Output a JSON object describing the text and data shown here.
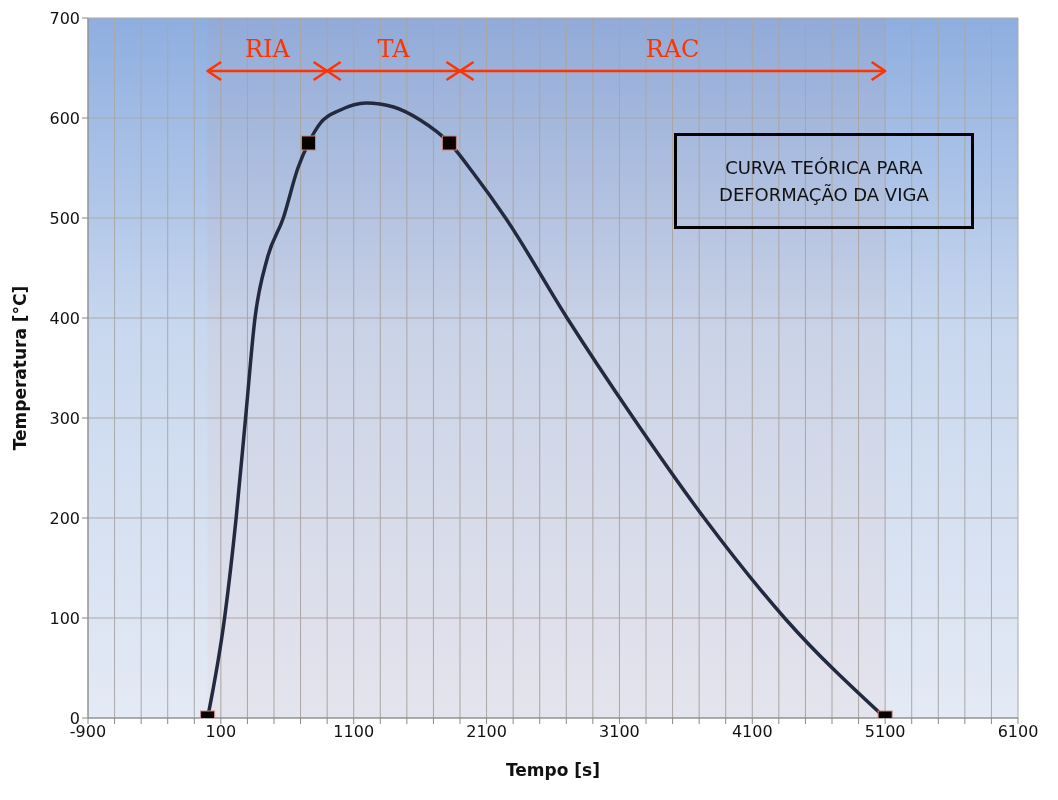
{
  "chart_data": {
    "type": "line",
    "xlabel": "Tempo [s]",
    "ylabel": "Temperatura [°C]",
    "xlim": [
      -900,
      6100
    ],
    "ylim": [
      0,
      700
    ],
    "xticks": [
      -900,
      {
        "value": -700,
        "label": null
      },
      {
        "value": -500,
        "label": null
      },
      {
        "value": -300,
        "label": null
      },
      {
        "value": -100,
        "label": null
      },
      100,
      {
        "value": 300,
        "label": null
      },
      {
        "value": 500,
        "label": null
      },
      {
        "value": 700,
        "label": null
      },
      {
        "value": 900,
        "label": null
      },
      1100,
      {
        "value": 1300,
        "label": null
      },
      {
        "value": 1500,
        "label": null
      },
      {
        "value": 1700,
        "label": null
      },
      {
        "value": 1900,
        "label": null
      },
      2100,
      {
        "value": 2300,
        "label": null
      },
      {
        "value": 2500,
        "label": null
      },
      {
        "value": 2700,
        "label": null
      },
      {
        "value": 2900,
        "label": null
      },
      3100,
      {
        "value": 3300,
        "label": null
      },
      {
        "value": 3500,
        "label": null
      },
      {
        "value": 3700,
        "label": null
      },
      {
        "value": 3900,
        "label": null
      },
      4100,
      {
        "value": 4300,
        "label": null
      },
      {
        "value": 4500,
        "label": null
      },
      {
        "value": 4700,
        "label": null
      },
      {
        "value": 4900,
        "label": null
      },
      5100,
      {
        "value": 5300,
        "label": null
      },
      {
        "value": 5500,
        "label": null
      },
      {
        "value": 5700,
        "label": null
      },
      {
        "value": 5900,
        "label": null
      },
      6100
    ],
    "yticks": [
      0,
      100,
      200,
      300,
      400,
      500,
      600,
      700
    ],
    "grid": true,
    "line_style": "solid",
    "series": [
      {
        "type": "line",
        "color": "#1c2a42",
        "marker": "none",
        "x": [
          0,
          128,
          215,
          286,
          357,
          450,
          570,
          680,
          760,
          850,
          1000,
          1194,
          1400,
          1600,
          1821,
          2000,
          2243,
          2706,
          3205,
          3738,
          4343,
          5100
        ],
        "values": [
          0,
          100,
          200,
          300,
          400,
          460,
          500,
          550,
          575,
          595,
          608,
          615,
          611,
          598,
          575,
          545,
          500,
          400,
          300,
          200,
          100,
          0
        ]
      },
      {
        "type": "scatter",
        "color": "#000000",
        "marker": "square",
        "x": [
          0,
          760,
          1820,
          5100
        ],
        "values": [
          0,
          575,
          575,
          0
        ]
      }
    ],
    "bands": [
      {
        "axis": "x",
        "from": 0,
        "to": 900,
        "label": "RIA",
        "color": "#ff3300"
      },
      {
        "axis": "x",
        "from": 900,
        "to": 1900,
        "label": "TA",
        "color": "#ff3300"
      },
      {
        "axis": "x",
        "from": 1900,
        "to": 5100,
        "label": "RAC",
        "color": "#ff3300"
      }
    ],
    "annotations": [
      "CURVA TEÓRICA PARA DEFORMAÇÃO DA VIGA"
    ]
  }
}
